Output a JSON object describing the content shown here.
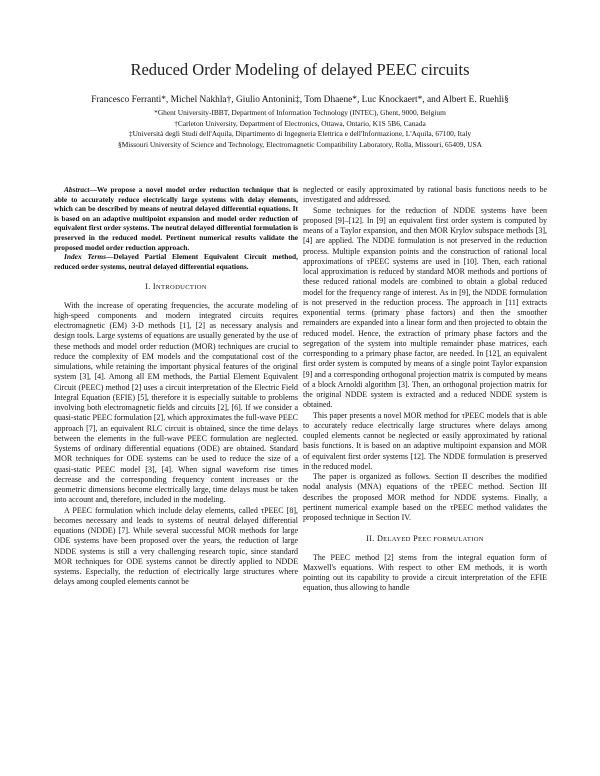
{
  "title": "Reduced Order Modeling of delayed PEEC circuits",
  "authors": "Francesco Ferranti*, Michel Nakhla†, Giulio Antonini‡, Tom Dhaene*, Luc Knockaert*, and Albert E. Ruehli§",
  "affiliations": [
    "*Ghent University-IBBT, Department of Information Technology (INTEC), Ghent, 9000, Belgium",
    "†Carleton University, Department of Electronics, Ottawa, Ontario, K1S 5B6, Canada",
    "‡Università degli Studi dell'Aquila, Dipartimento di Ingegneria Elettrica e dell'Informazione, L'Aquila, 67100, Italy",
    "§Missouri University of Science and Technology, Electromagnetic Compatibility Laboratory, Rolla, Missouri, 65409, USA"
  ],
  "abstract": {
    "label": "Abstract",
    "text": "—We propose a novel model order reduction technique that is able to accurately reduce electrically large systems with delay elements, which can be described by means of neutral delayed differential equations. It is based on an adaptive multipoint expansion and model order reduction of equivalent first order systems. The neutral delayed differential formulation is preserved in the reduced model. Pertinent numerical results validate the proposed model order reduction approach."
  },
  "index_terms": {
    "label": "Index Terms",
    "text": "—Delayed Partial Element Equivalent Circuit method, reduced order systems, neutral delayed differential equations."
  },
  "section1": {
    "numeral": "I.",
    "first": "I",
    "rest": "NTRODUCTION"
  },
  "section1_paragraphs": [
    "With the increase of operating frequencies, the accurate modeling of high-speed components and modern integrated circuits requires electromagnetic (EM) 3-D methods [1], [2] as necessary analysis and design tools. Large systems of equations are usually generated by the use of these methods and model order reduction (MOR) techniques are crucial to reduce the complexity of EM models and the computational cost of the simulations, while retaining the important physical features of the original system [3], [4]. Among all EM methods, the Partial Element Equivalent Circuit (PEEC) method [2] uses a circuit interpretation of the Electric Field Integral Equation (EFIE) [5], therefore it is especially suitable to problems involving both electromagnetic fields and circuits [2], [6]. If we consider a quasi-static PEEC formulation [2], which approximates the full-wave PEEC approach [7], an equivalent RLC circuit is obtained, since the time delays between the elements in the full-wave PEEC formulation are neglected. Systems of ordinary differential equations (ODE) are obtained. Standard MOR techniques for ODE systems can be used to reduce the size of a quasi-static PEEC model [3], [4]. When signal waveform rise times decrease and the corresponding frequency content increases or the geometric dimensions become electrically large, time delays must be taken into account and, therefore, included in the modeling.",
    "A PEEC formulation which include delay elements, called τPEEC [8], becomes necessary and leads to systems of neutral delayed differential equations (NDDE) [7]. While several successful MOR methods for large ODE systems have been proposed over the years, the reduction of large NDDE systems is still a very challenging research topic, since standard MOR techniques for ODE systems cannot be directly applied to NDDE systems. Especially, the reduction of electrically large structures where delays among coupled elements cannot be"
  ],
  "right_paragraphs": [
    "neglected or easily approximated by rational basis functions needs to be investigated and addressed.",
    "Some techniques for the reduction of NDDE systems have been proposed [9]–[12]. In [9] an equivalent first order system is computed by means of a Taylor expansion, and then MOR Krylov subspace methods [3], [4] are applied. The NDDE formulation is not preserved in the reduction process. Multiple expansion points and the construction of rational local approximations of τPEEC systems are used in [10]. Then, each rational local approximation is reduced by standard MOR methods and portions of these reduced rational models are combined to obtain a global reduced model for the frequency range of interest. As in [9], the NDDE formulation is not preserved in the reduction process. The approach in [11] extracts exponential terms (primary phase factors) and then the smoother remainders are expanded into a linear form and then projected to obtain the reduced model. Hence, the extraction of primary phase factors and the segregation of the system into multiple remainder phase matrices, each corresponding to a primary phase factor, are needed. In [12], an equivalent first order system is computed by means of a single point Taylor expansion [9] and a corresponding orthogonal projection matrix is computed by means of a block Arnoldi algorithm [3]. Then, an orthogonal projection matrix for the original NDDE system is extracted and a reduced NDDE system is obtained.",
    "This paper presents a novel MOR method for τPEEC models that is able to accurately reduce electrically large structures where delays among coupled elements cannot be neglected or easily approximated by rational basis functions. It is based on an adaptive multipoint expansion and MOR of equivalent first order systems [12]. The NDDE formulation is preserved in the reduced model.",
    "The paper is organized as follows. Section II describes the modified nodal analysis (MNA) equations of the τPEEC method. Section III describes the proposed MOR method for NDDE systems. Finally, a pertinent numerical example based on the τPEEC method validates the proposed technique in Section IV."
  ],
  "section2": {
    "numeral": "II.",
    "first_a": "D",
    "rest_a": "ELAYED",
    "first_b": "P",
    "rest_b": "EEC FORMULATION"
  },
  "section2_paragraphs": [
    "The PEEC method [2] stems from the integral equation form of Maxwell's equations. With respect to other EM methods, it is worth pointing out its capability to provide a circuit interpretation of the EFIE equation, thus allowing to handle"
  ]
}
